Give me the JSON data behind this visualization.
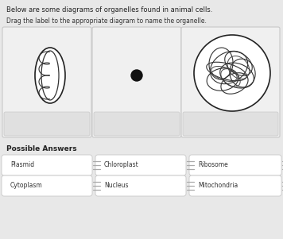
{
  "title1": "Below are some diagrams of organelles found in animal cells.",
  "title2": "Drag the label to the appropriate diagram to name the organelle.",
  "bg_color": "#e8e8e8",
  "possible_answers_title": "Possible Answers",
  "answers_row1": [
    "Plasmid",
    "Chloroplast",
    "Ribosome"
  ],
  "answers_row2": [
    "Cytoplasm",
    "Nucleus",
    "Mitochondria"
  ],
  "card_bg": "#f0f0f0",
  "card_border": "#c8c8c8",
  "label_tab_bg": "#e0e0e0",
  "white": "#ffffff"
}
